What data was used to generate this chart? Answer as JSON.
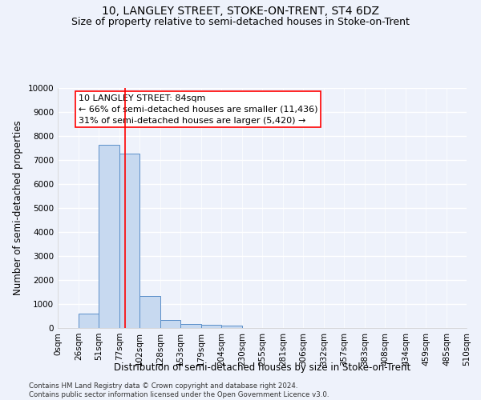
{
  "title": "10, LANGLEY STREET, STOKE-ON-TRENT, ST4 6DZ",
  "subtitle": "Size of property relative to semi-detached houses in Stoke-on-Trent",
  "xlabel": "Distribution of semi-detached houses by size in Stoke-on-Trent",
  "ylabel": "Number of semi-detached properties",
  "footer": "Contains HM Land Registry data © Crown copyright and database right 2024.\nContains public sector information licensed under the Open Government Licence v3.0.",
  "bin_labels": [
    "0sqm",
    "26sqm",
    "51sqm",
    "77sqm",
    "102sqm",
    "128sqm",
    "153sqm",
    "179sqm",
    "204sqm",
    "230sqm",
    "255sqm",
    "281sqm",
    "306sqm",
    "332sqm",
    "357sqm",
    "383sqm",
    "408sqm",
    "434sqm",
    "459sqm",
    "485sqm",
    "510sqm"
  ],
  "bar_values": [
    0,
    590,
    7640,
    7250,
    1340,
    340,
    155,
    120,
    100,
    0,
    0,
    0,
    0,
    0,
    0,
    0,
    0,
    0,
    0,
    0
  ],
  "bar_color": "#c7d9f0",
  "bar_edge_color": "#5b8fc9",
  "property_line_x": 84,
  "property_line_color": "red",
  "annotation_line1": "10 LANGLEY STREET: 84sqm",
  "annotation_line2": "← 66% of semi-detached houses are smaller (11,436)",
  "annotation_line3": "31% of semi-detached houses are larger (5,420) →",
  "annotation_box_color": "white",
  "annotation_box_edge": "red",
  "ylim": [
    0,
    10000
  ],
  "yticks": [
    0,
    1000,
    2000,
    3000,
    4000,
    5000,
    6000,
    7000,
    8000,
    9000,
    10000
  ],
  "bg_color": "#eef2fb",
  "grid_color": "white",
  "title_fontsize": 10,
  "subtitle_fontsize": 9,
  "axis_label_fontsize": 8.5,
  "tick_fontsize": 7.5,
  "annotation_fontsize": 8
}
